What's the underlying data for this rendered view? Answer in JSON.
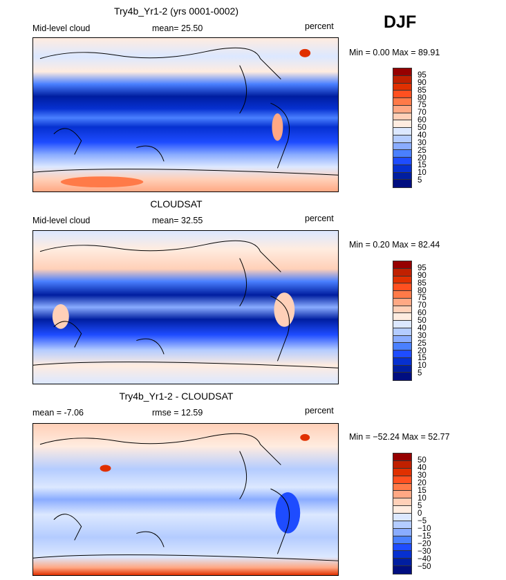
{
  "season": "DJF",
  "colors": [
    "#960000",
    "#c02000",
    "#e03000",
    "#ff5020",
    "#ff7a48",
    "#ffa884",
    "#ffd0b8",
    "#ffece0",
    "#dce8ff",
    "#b4ccff",
    "#8aacff",
    "#4a80ff",
    "#1e4cff",
    "#0630d0",
    "#001ea0",
    "#000e80"
  ],
  "panels": [
    {
      "title": "Try4b_Yr1-2 (yrs 0001-0002)",
      "left": "Mid-level cloud",
      "middle": "mean=  25.50",
      "right": "percent",
      "minmax": "Min =    0.00 Max =   89.91",
      "levels": [
        "95",
        "90",
        "85",
        "80",
        "75",
        "70",
        "60",
        "50",
        "40",
        "30",
        "25",
        "20",
        "15",
        "10",
        "5"
      ]
    },
    {
      "title": "CLOUDSAT",
      "left": "Mid-level cloud",
      "middle": "mean=  32.55",
      "right": "percent",
      "minmax": "Min =    0.20 Max =   82.44",
      "levels": [
        "95",
        "90",
        "85",
        "80",
        "75",
        "70",
        "60",
        "50",
        "40",
        "30",
        "25",
        "20",
        "15",
        "10",
        "5"
      ]
    },
    {
      "title": "Try4b_Yr1-2 - CLOUDSAT",
      "left": "mean =  -7.06",
      "middle": "rmse =  12.59",
      "right": "percent",
      "minmax": "Min = −52.24 Max =  52.77",
      "levels": [
        "50",
        "40",
        "30",
        "20",
        "15",
        "10",
        "5",
        "0",
        "−5",
        "−10",
        "−15",
        "−20",
        "−30",
        "−40",
        "−50"
      ]
    }
  ]
}
